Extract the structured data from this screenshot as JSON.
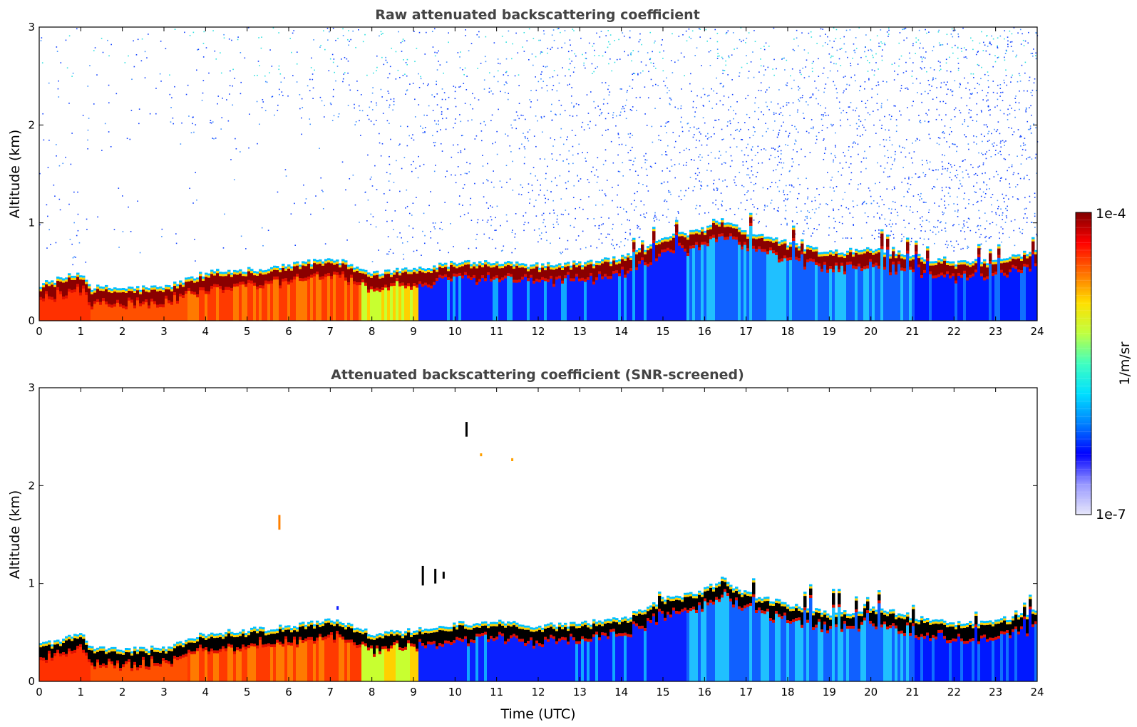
{
  "chart_data": [
    {
      "type": "heatmap",
      "title": "Raw attenuated backscattering coefficient",
      "xlabel": "",
      "ylabel": "Altitude (km)",
      "xlim": [
        0,
        24
      ],
      "ylim": [
        0,
        3
      ],
      "xticks": [
        "0",
        "1",
        "2",
        "3",
        "4",
        "5",
        "6",
        "7",
        "8",
        "9",
        "10",
        "11",
        "12",
        "13",
        "14",
        "15",
        "16",
        "17",
        "18",
        "19",
        "20",
        "21",
        "22",
        "23",
        "24"
      ],
      "yticks": [
        "0",
        "1",
        "2",
        "3"
      ],
      "screened": false,
      "layer_top_km": {
        "hours": [
          0,
          1,
          1.2,
          2,
          3,
          4,
          5,
          6,
          7,
          8,
          9,
          10,
          11,
          12,
          13,
          14,
          15,
          16,
          16.4,
          17,
          18,
          19,
          20,
          21,
          22,
          23,
          24
        ],
        "values": [
          0.33,
          0.45,
          0.3,
          0.29,
          0.3,
          0.45,
          0.48,
          0.52,
          0.6,
          0.45,
          0.48,
          0.55,
          0.56,
          0.52,
          0.55,
          0.6,
          0.8,
          0.9,
          1.0,
          0.85,
          0.75,
          0.65,
          0.7,
          0.62,
          0.55,
          0.58,
          0.68
        ]
      }
    },
    {
      "type": "heatmap",
      "title": "Attenuated backscattering coefficient (SNR-screened)",
      "xlabel": "Time (UTC)",
      "ylabel": "Altitude (km)",
      "xlim": [
        0,
        24
      ],
      "ylim": [
        0,
        3
      ],
      "xticks": [
        "0",
        "1",
        "2",
        "3",
        "4",
        "5",
        "6",
        "7",
        "8",
        "9",
        "10",
        "11",
        "12",
        "13",
        "14",
        "15",
        "16",
        "17",
        "18",
        "19",
        "20",
        "21",
        "22",
        "23",
        "24"
      ],
      "yticks": [
        "0",
        "1",
        "2",
        "3"
      ],
      "screened": true,
      "layer_top_km": {
        "hours": [
          0,
          1,
          1.2,
          2,
          3,
          4,
          5,
          6,
          7,
          8,
          9,
          10,
          11,
          12,
          13,
          14,
          15,
          16,
          16.4,
          17,
          18,
          19,
          20,
          21,
          22,
          23,
          24
        ],
        "values": [
          0.33,
          0.45,
          0.3,
          0.29,
          0.3,
          0.45,
          0.48,
          0.52,
          0.6,
          0.45,
          0.48,
          0.55,
          0.56,
          0.52,
          0.55,
          0.6,
          0.8,
          0.9,
          1.0,
          0.85,
          0.75,
          0.65,
          0.7,
          0.62,
          0.55,
          0.58,
          0.68
        ]
      }
    }
  ],
  "colorbar": {
    "label": "1/m/sr",
    "max_label": "1e-4",
    "min_label": "1e-7",
    "scale": "log",
    "colormap": "jet",
    "colors": [
      "#e6e6fa",
      "#9999ff",
      "#0000ff",
      "#0080ff",
      "#00e0ff",
      "#40ffc0",
      "#c0ff40",
      "#ffe000",
      "#ff7000",
      "#ff0000",
      "#800000"
    ]
  }
}
